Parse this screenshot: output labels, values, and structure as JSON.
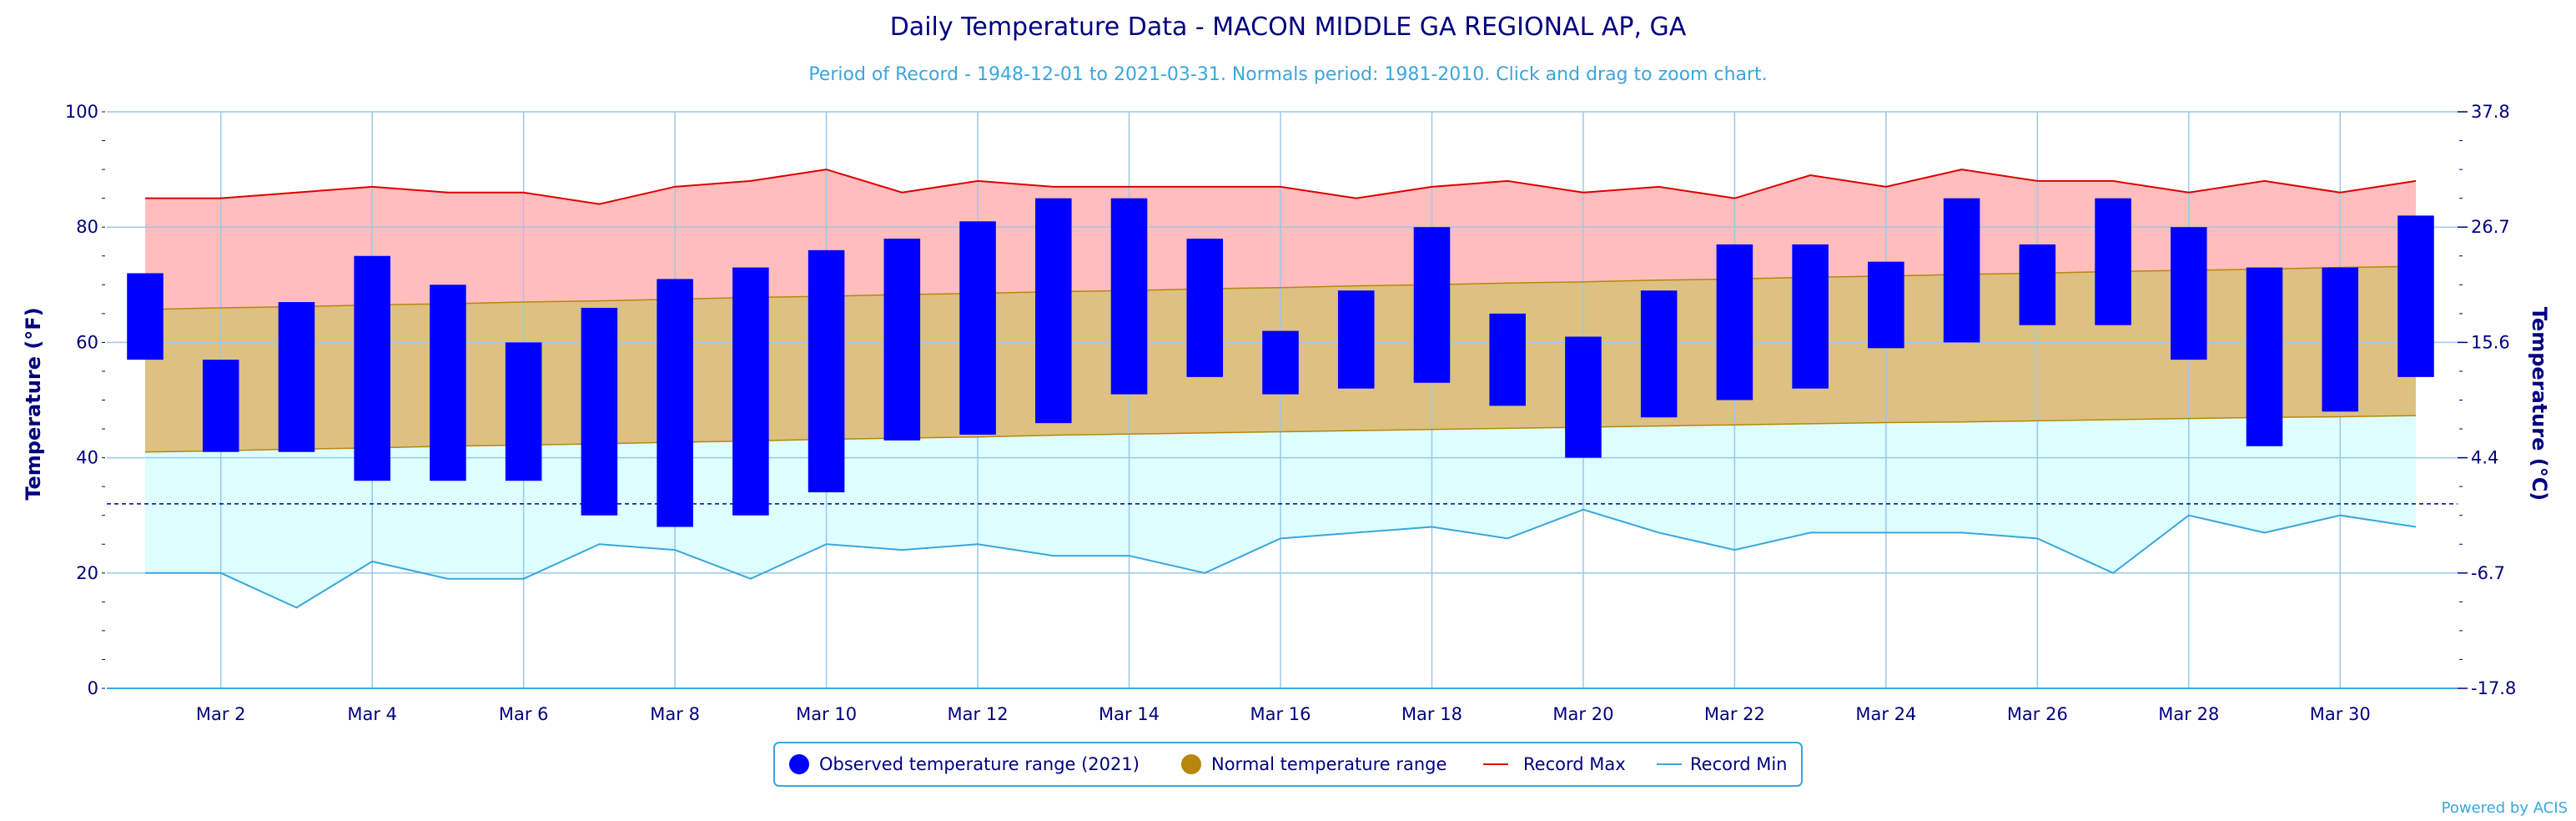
{
  "chart_data": {
    "type": "bar",
    "title": "Daily Temperature Data - MACON MIDDLE GA REGIONAL AP, GA",
    "subtitle": "Period of Record - 1948-12-01 to 2021-03-31. Normals period: 1981-2010. Click and drag to zoom chart.",
    "ylabel": "Temperature (°F)",
    "y2label": "Temperature (°C)",
    "ylim": [
      0,
      100
    ],
    "y_ticks": [
      "0",
      "20",
      "40",
      "60",
      "80",
      "100"
    ],
    "y2_ticks": [
      "-17.8",
      "-6.7",
      "4.4",
      "15.6",
      "26.7",
      "37.8"
    ],
    "x_tick_labels": [
      "Mar 2",
      "Mar 4",
      "Mar 6",
      "Mar 8",
      "Mar 10",
      "Mar 12",
      "Mar 14",
      "Mar 16",
      "Mar 18",
      "Mar 20",
      "Mar 22",
      "Mar 24",
      "Mar 26",
      "Mar 28",
      "Mar 30"
    ],
    "days": [
      1,
      2,
      3,
      4,
      5,
      6,
      7,
      8,
      9,
      10,
      11,
      12,
      13,
      14,
      15,
      16,
      17,
      18,
      19,
      20,
      21,
      22,
      23,
      24,
      25,
      26,
      27,
      28,
      29,
      30,
      31
    ],
    "freezing_line": 32,
    "grid": true,
    "legend_position": "bottom-center",
    "series": [
      {
        "name": "Observed temperature range (2021)",
        "color": "#0000ff",
        "low": [
          57,
          41,
          41,
          36,
          36,
          36,
          30,
          28,
          30,
          34,
          43,
          44,
          46,
          51,
          54,
          51,
          52,
          53,
          49,
          40,
          47,
          50,
          52,
          59,
          60,
          63,
          63,
          57,
          42,
          48,
          54
        ],
        "high": [
          72,
          57,
          67,
          75,
          70,
          60,
          66,
          71,
          73,
          76,
          78,
          81,
          85,
          85,
          78,
          62,
          69,
          80,
          65,
          61,
          69,
          77,
          77,
          74,
          85,
          77,
          85,
          80,
          73,
          73,
          82
        ]
      },
      {
        "name": "Normal temperature range",
        "color": "#b8860b",
        "low": [
          41,
          41.2,
          41.5,
          41.7,
          42,
          42.2,
          42.4,
          42.7,
          42.9,
          43.2,
          43.4,
          43.6,
          43.9,
          44.1,
          44.3,
          44.5,
          44.7,
          44.9,
          45.1,
          45.3,
          45.5,
          45.7,
          45.9,
          46.1,
          46.2,
          46.4,
          46.6,
          46.8,
          47,
          47.1,
          47.3
        ],
        "high": [
          65.7,
          66,
          66.2,
          66.5,
          66.7,
          67,
          67.2,
          67.5,
          67.8,
          68,
          68.3,
          68.5,
          68.8,
          69,
          69.3,
          69.5,
          69.8,
          70,
          70.3,
          70.5,
          70.8,
          71,
          71.3,
          71.5,
          71.8,
          72,
          72.3,
          72.5,
          72.7,
          73,
          73.2
        ]
      },
      {
        "name": "Record Max",
        "color": "#dd0000",
        "values": [
          85,
          85,
          86,
          87,
          86,
          86,
          84,
          87,
          88,
          90,
          86,
          88,
          87,
          87,
          87,
          87,
          85,
          87,
          88,
          86,
          87,
          85,
          89,
          87,
          90,
          88,
          88,
          86,
          88,
          86,
          88
        ]
      },
      {
        "name": "Record Min",
        "color": "#3aa6dd",
        "values": [
          20,
          20,
          14,
          22,
          19,
          19,
          25,
          24,
          19,
          25,
          24,
          25,
          23,
          23,
          20,
          26,
          27,
          28,
          26,
          31,
          27,
          24,
          27,
          27,
          27,
          26,
          20,
          30,
          27,
          30,
          28
        ]
      }
    ]
  },
  "credits": "Powered by ACIS"
}
